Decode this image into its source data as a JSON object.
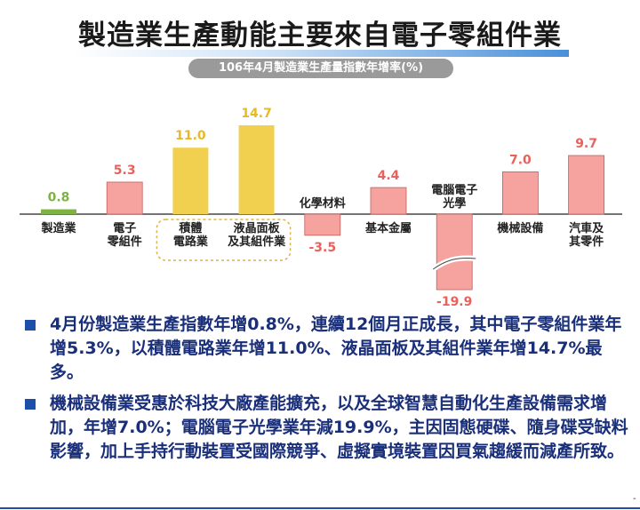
{
  "title": "製造業生產動能主要來自電子零組件業",
  "subtitle": "106年4月製造業生產量指數年增率(%)",
  "chart_data": {
    "type": "bar",
    "title": "106年4月製造業生產量指數年增率(%)",
    "categories": [
      [
        "製造業"
      ],
      [
        "電子",
        "零組件"
      ],
      [
        "積體",
        "電路業"
      ],
      [
        "液晶面板",
        "及其組件業"
      ],
      [
        "化學材料"
      ],
      [
        "基本金屬"
      ],
      [
        "電腦電子",
        "光學"
      ],
      [
        "機械設備"
      ],
      [
        "汽車及",
        "其零件"
      ]
    ],
    "values": [
      0.8,
      5.3,
      11.0,
      14.7,
      -3.5,
      4.4,
      -19.9,
      7.0,
      9.7
    ],
    "value_labels": [
      "0.8",
      "5.3",
      "11.0",
      "14.7",
      "-3.5",
      "4.4",
      "-19.9",
      "7.0",
      "9.7"
    ],
    "highlight_group": [
      2,
      3
    ],
    "broken_axis_bar": 6,
    "colors": {
      "manufacturing": "#7cb342",
      "highlight": "#f2d04f",
      "other": "#f6a3a0",
      "manufacturing_label": "#7cb342",
      "highlight_label": "#e8b923",
      "other_label": "#e8615a",
      "group_outline": "#e0b53a"
    }
  },
  "bullets": [
    "4月份製造業生產指數年增0.8%，連續12個月正成長，其中電子零組件業年增5.3%，以積體電路業年增11.0%、液晶面板及其組件業年增14.7%最多。",
    "機械設備業受惠於科技大廠產能擴充，以及全球智慧自動化生產設備需求增加，年增7.0%；電腦電子光學業年減19.9%，主因固態硬碟、隨身碟受缺料影響，加上手持行動裝置受國際競爭、虛擬實境裝置因買氣趨緩而減產所致。"
  ],
  "footer_mark": "-"
}
